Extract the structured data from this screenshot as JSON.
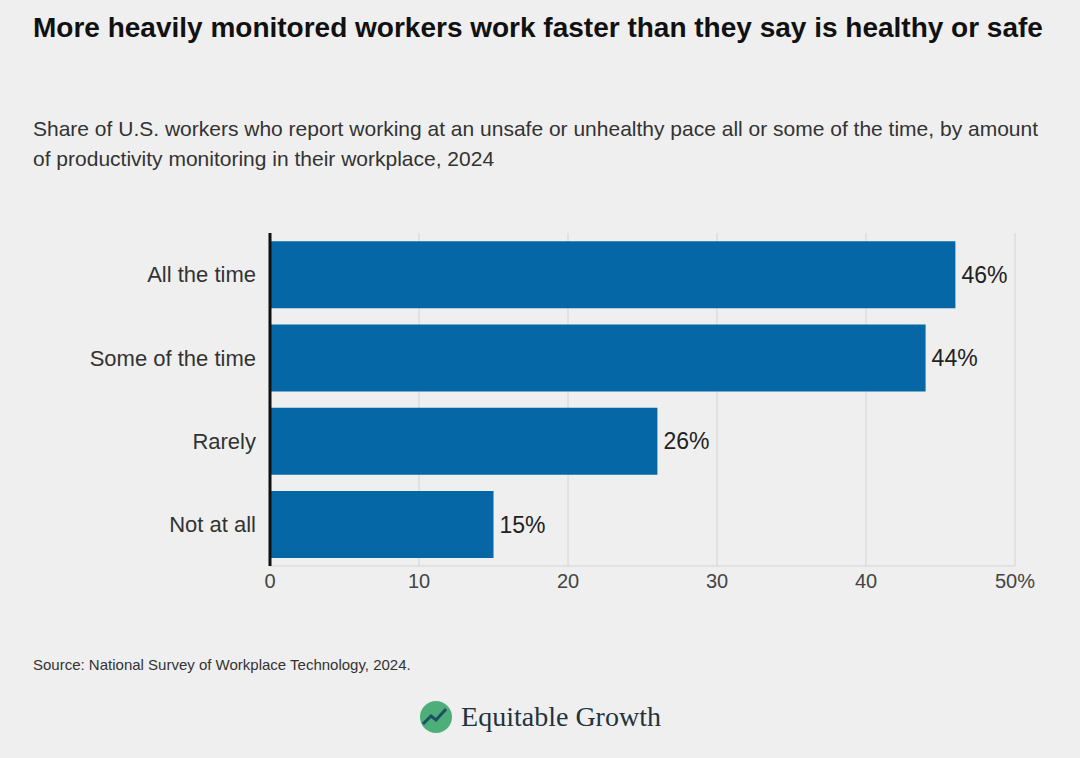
{
  "chart_data": {
    "type": "bar",
    "orientation": "horizontal",
    "title": "More heavily monitored workers work faster than they say is healthy or safe",
    "subtitle": "Share of U.S. workers who report working at an unsafe or unhealthy pace all or some of the time, by amount of productivity monitoring in their workplace, 2024",
    "categories": [
      "All the time",
      "Some of the time",
      "Rarely",
      "Not at all"
    ],
    "values": [
      46,
      44,
      26,
      15
    ],
    "value_labels": [
      "46%",
      "44%",
      "26%",
      "15%"
    ],
    "data_labels": true,
    "color": "#0567a6",
    "xlim": [
      0,
      50
    ],
    "xticks": [
      0,
      10,
      20,
      30,
      40,
      {
        "value": 50,
        "label": "50%"
      }
    ],
    "grid": true,
    "source": "Source: National Survey of Workplace Technology, 2024.",
    "brand": "Equitable Growth"
  }
}
